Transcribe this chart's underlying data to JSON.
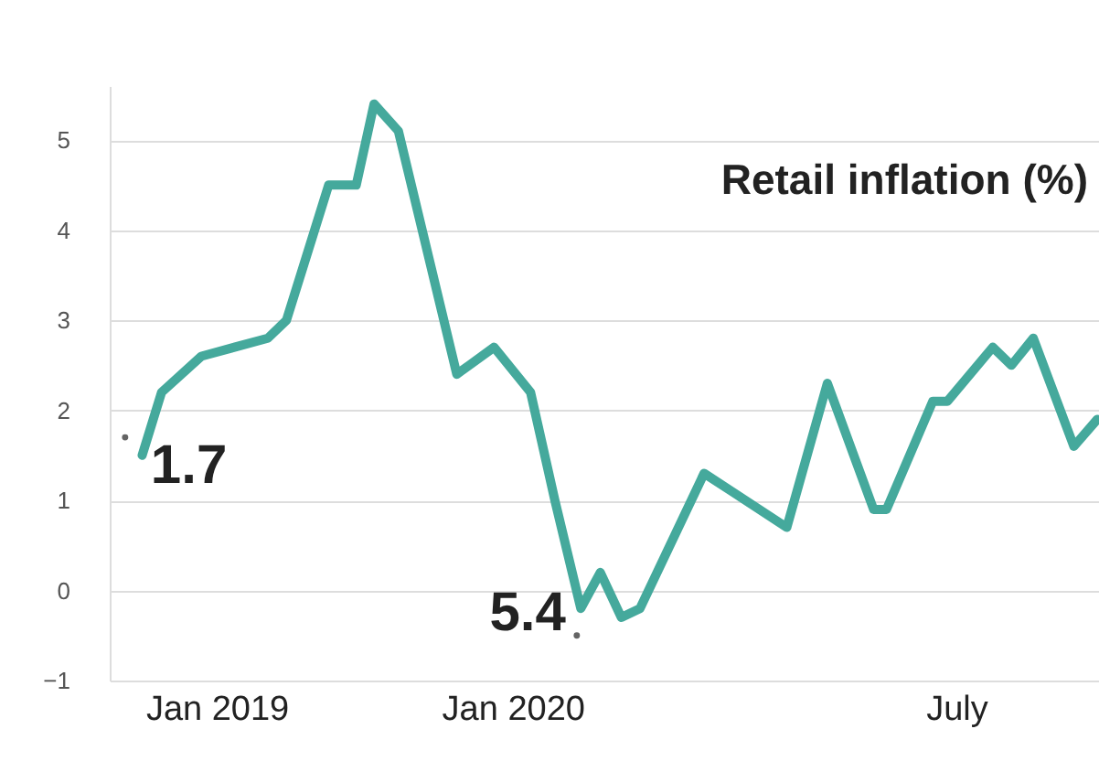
{
  "chart_data": {
    "type": "line",
    "title": "Retail inflation (%)",
    "x": [
      "2018-10-01",
      "2018-10-25",
      "2018-12-13",
      "2019-03-05",
      "2019-03-28",
      "2019-05-19",
      "2019-06-22",
      "2019-07-14",
      "2019-08-13",
      "2019-10-24",
      "2019-12-09",
      "2020-01-23",
      "2020-02-22",
      "2020-03-25",
      "2020-04-18",
      "2020-05-14",
      "2020-06-06",
      "2020-08-24",
      "2020-09-27",
      "2020-12-04",
      "2021-01-23",
      "2021-03-21",
      "2021-04-06",
      "2021-06-02",
      "2021-06-20",
      "2021-08-15",
      "2021-09-07",
      "2021-10-04",
      "2021-11-23",
      "2021-12-22"
    ],
    "series": [
      {
        "color": "#45a99c",
        "values": [
          1.5,
          2.2,
          2.6,
          2.8,
          3.0,
          4.5,
          4.5,
          5.4,
          5.1,
          2.4,
          2.7,
          2.2,
          1.0,
          -0.2,
          0.2,
          -0.3,
          -0.2,
          1.3,
          1.1,
          0.7,
          2.3,
          0.9,
          0.9,
          2.1,
          2.1,
          2.7,
          2.5,
          2.8,
          1.6,
          1.9
        ]
      }
    ],
    "annotations": [
      {
        "text": "1.7",
        "x": "2018-09-10",
        "y": 1.7
      },
      {
        "text": "5.4",
        "x": "2020-03-20",
        "y": -0.5
      }
    ],
    "xlim": [
      "2018-08-22",
      "2021-12-24"
    ],
    "xticks": [
      {
        "value": "2019-01-01",
        "label": "Jan 2019"
      },
      {
        "value": "2020-01-01",
        "label": "Jan 2020"
      },
      {
        "value": "2021-07-01",
        "label": "July"
      }
    ],
    "ylim": [
      -1,
      5.6
    ],
    "yticks": [
      -1,
      0,
      1,
      2,
      3,
      4,
      5
    ],
    "grid": "y",
    "marker": "none",
    "line_style": "solid"
  }
}
